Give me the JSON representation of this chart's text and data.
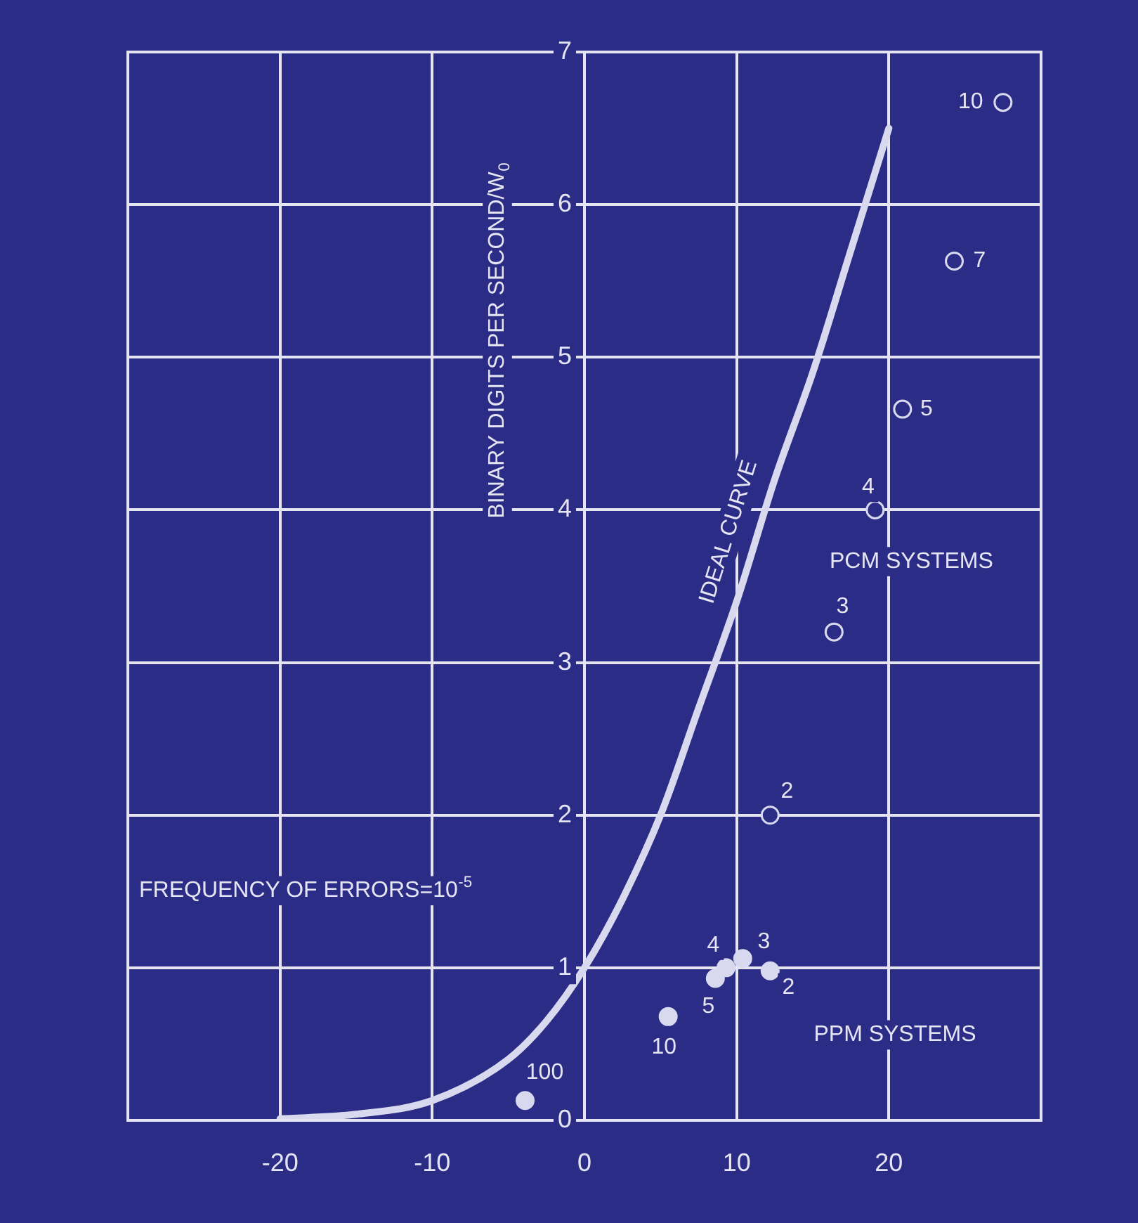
{
  "chart_data": {
    "type": "scatter",
    "ylabel": "BINARY DIGITS PER SECOND/W$_{0}$",
    "xlim": [
      -30,
      30
    ],
    "xticks": [
      {
        "value": -30,
        "label": null
      },
      -20,
      -10,
      0,
      10,
      20,
      {
        "value": 30,
        "label": null
      }
    ],
    "ylim": [
      0,
      7
    ],
    "yticks": [
      0,
      1,
      2,
      3,
      4,
      5,
      6,
      7
    ],
    "grid": true,
    "legend": false,
    "marker": "circle",
    "series": [
      {
        "name": "IDEAL CURVE",
        "type": "line",
        "color": "#d8d8ee",
        "marker": "none",
        "x": [
          -20,
          -15,
          -10,
          -5,
          -2.5,
          0,
          2.5,
          5,
          7.5,
          10,
          12.5,
          15,
          17.5,
          20
        ],
        "values": [
          0.01,
          0.04,
          0.13,
          0.4,
          0.65,
          1.0,
          1.45,
          2.0,
          2.7,
          3.4,
          4.2,
          4.9,
          5.7,
          6.5
        ]
      },
      {
        "name": "PCM SYSTEMS",
        "color": "#d8d8ee",
        "x": [
          12.2,
          16.4,
          19.1,
          20.9,
          24.3,
          27.5
        ],
        "values": [
          2.0,
          3.2,
          4.0,
          4.66,
          5.63,
          6.67
        ]
      },
      {
        "name": "PPM SYSTEMS",
        "color": "#d8d8ee",
        "x": [
          -3.9,
          5.5,
          8.6,
          9.3,
          10.4,
          12.2
        ],
        "values": [
          0.13,
          0.68,
          0.93,
          1.0,
          1.06,
          0.98
        ]
      }
    ],
    "annotations": [
      "FREQUENCY OF ERRORS=10$^{-5}$",
      {
        "text": "2",
        "x": 12.2,
        "y": 2.0
      },
      {
        "text": "3",
        "x": 16.4,
        "y": 3.2
      },
      {
        "text": "4",
        "x": 19.1,
        "y": 4.0
      },
      {
        "text": "5",
        "x": 20.9,
        "y": 4.66
      },
      {
        "text": "7",
        "x": 24.3,
        "y": 5.63
      },
      {
        "text": "10",
        "x": 27.5,
        "y": 6.67
      },
      {
        "text": "100",
        "x": -3.9,
        "y": 0.13
      },
      {
        "text": "10",
        "x": 5.5,
        "y": 0.68
      },
      {
        "text": "5",
        "x": 8.6,
        "y": 0.93
      },
      {
        "text": "4",
        "x": 9.3,
        "y": 1.0
      },
      {
        "text": "3",
        "x": 10.4,
        "y": 1.06
      },
      {
        "text": "2",
        "x": 12.2,
        "y": 0.98
      }
    ]
  }
}
